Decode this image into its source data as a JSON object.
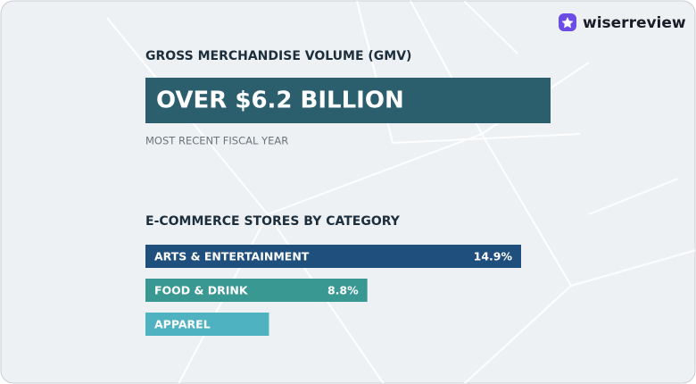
{
  "brand": "wiserreview",
  "header": {
    "title": "GROSS MERCHANDISE VOLUME (GMV)",
    "headline": "OVER $6.2 BILLION",
    "note": "MOST RECENT FISCAL YEAR"
  },
  "chart_data": {
    "type": "bar",
    "orientation": "horizontal",
    "title": "E-COMMERCE STORES BY CATEGORY",
    "categories": [
      "ARTS & ENTERTAINMENT",
      "FOOD & DRINK",
      "APPAREL"
    ],
    "values": [
      14.9,
      8.8,
      4.9
    ],
    "value_labels": [
      "14.9%",
      "8.8%",
      null
    ],
    "colors": [
      "#1f4f7c",
      "#3a9893",
      "#4fb2c0"
    ]
  }
}
